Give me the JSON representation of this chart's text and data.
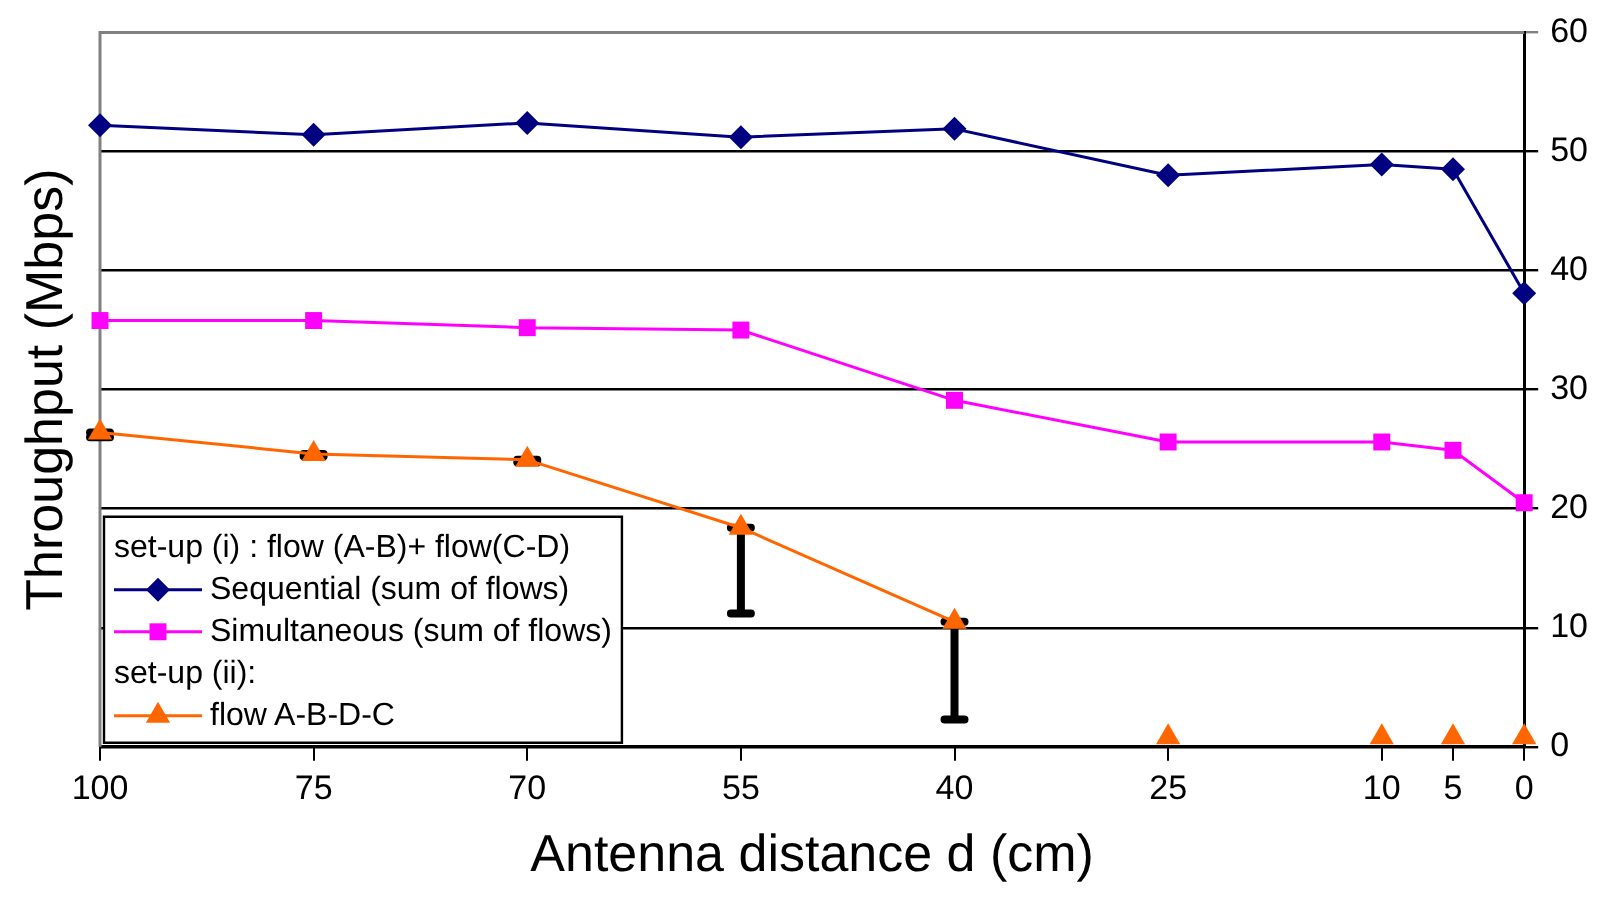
{
  "chart_data": {
    "type": "line",
    "xlabel": "Antenna distance d (cm)",
    "ylabel": "Throughput (Mbps)",
    "categories": [
      "100",
      "75",
      "70",
      "55",
      "40",
      "25",
      "10",
      "5",
      "0"
    ],
    "series": [
      {
        "name": "Sequential (sum of flows)",
        "color": "#000080",
        "marker": "diamond",
        "values": [
          52.2,
          51.4,
          52.4,
          51.2,
          51.9,
          48.0,
          48.9,
          48.5,
          38.1
        ]
      },
      {
        "name": "Simultaneous (sum of flows)",
        "color": "#ff00ff",
        "marker": "square",
        "values": [
          35.8,
          35.8,
          35.2,
          35.0,
          29.1,
          25.6,
          25.6,
          24.9,
          20.5
        ]
      },
      {
        "name": "flow A-B-D-C",
        "color": "#ff6600",
        "marker": "triangle",
        "values": [
          26.4,
          24.6,
          24.1,
          18.4,
          10.5,
          null,
          null,
          null,
          null
        ],
        "errors": [
          [
            26.0,
            26.4
          ],
          [
            24.4,
            24.6
          ],
          [
            23.9,
            24.1
          ],
          [
            11.2,
            18.4
          ],
          [
            2.3,
            10.5
          ],
          null,
          null,
          null,
          null
        ]
      },
      {
        "type": "scatter",
        "color": "#ff6600",
        "marker": "triangle",
        "values": [
          null,
          null,
          null,
          null,
          null,
          0.8,
          0.8,
          0.8,
          0.8
        ]
      }
    ],
    "annotations": [
      "set-up (i) : flow (A-B)+ flow(C-D)",
      "set-up (ii):"
    ],
    "ylim": [
      0,
      60
    ],
    "yticks": [
      0,
      10,
      20,
      30,
      40,
      50,
      60
    ],
    "grid": "y",
    "legend": "bottom left"
  }
}
